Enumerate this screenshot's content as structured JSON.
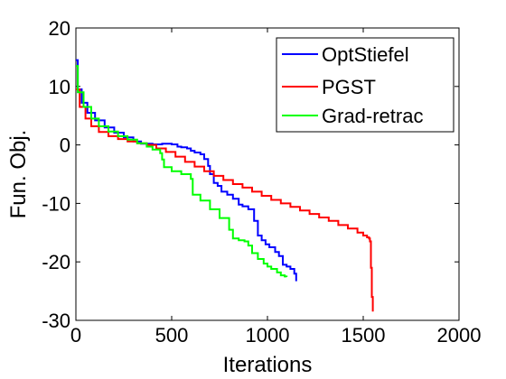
{
  "chart_data": {
    "type": "line",
    "title": "",
    "xlabel": "Iterations",
    "ylabel": "Fun. Obj.",
    "xlim": [
      0,
      2000
    ],
    "ylim": [
      -30,
      20
    ],
    "xticks": [
      "0",
      "500",
      "1000",
      "1500",
      "2000"
    ],
    "yticks": [
      "20",
      "10",
      "0",
      "-10",
      "-20",
      "-30"
    ],
    "legend_position": "top-right",
    "grid": false,
    "series": [
      {
        "name": "OptStiefel",
        "color": "#0000ff",
        "x": [
          0,
          10,
          30,
          60,
          100,
          150,
          200,
          250,
          300,
          340,
          360,
          400,
          450,
          500,
          530,
          550,
          580,
          600,
          620,
          650,
          670,
          690,
          700,
          720,
          740,
          760,
          790,
          820,
          850,
          870,
          900,
          930,
          950,
          970,
          990,
          1010,
          1040,
          1060,
          1080,
          1100,
          1120,
          1140,
          1150
        ],
        "y": [
          14.5,
          9.5,
          7.2,
          5.5,
          4.2,
          3.0,
          2.1,
          1.3,
          0.6,
          0.2,
          0.2,
          0.1,
          0.2,
          0.1,
          -0.3,
          -0.4,
          -0.6,
          -1.0,
          -1.3,
          -1.6,
          -2.4,
          -3.6,
          -5.0,
          -6.5,
          -7.0,
          -8.0,
          -8.5,
          -9.2,
          -10.2,
          -10.5,
          -11.0,
          -13.0,
          -15.5,
          -16.3,
          -17.0,
          -17.5,
          -18.3,
          -19.0,
          -20.5,
          -20.8,
          -21.2,
          -22.0,
          -23.3
        ]
      },
      {
        "name": "PGST",
        "color": "#ff0000",
        "x": [
          0,
          20,
          50,
          80,
          120,
          170,
          220,
          270,
          320,
          370,
          420,
          470,
          520,
          570,
          620,
          670,
          720,
          770,
          820,
          870,
          920,
          970,
          1020,
          1070,
          1120,
          1170,
          1220,
          1270,
          1320,
          1370,
          1420,
          1470,
          1500,
          1520,
          1530,
          1535,
          1540,
          1545,
          1550
        ],
        "y": [
          9.5,
          6.5,
          4.5,
          3.2,
          2.2,
          1.5,
          1.0,
          0.6,
          0.3,
          0.0,
          -0.6,
          -1.2,
          -2.0,
          -2.9,
          -3.7,
          -4.5,
          -5.3,
          -6.0,
          -6.7,
          -7.3,
          -8.0,
          -8.7,
          -9.4,
          -10.0,
          -10.6,
          -11.2,
          -11.8,
          -12.4,
          -13.0,
          -13.7,
          -14.3,
          -15.0,
          -15.5,
          -15.8,
          -16.0,
          -16.5,
          -21.0,
          -26.0,
          -28.5
        ]
      },
      {
        "name": "Grad-retrac",
        "color": "#00ff00",
        "x": [
          0,
          10,
          40,
          80,
          120,
          170,
          220,
          270,
          320,
          370,
          400,
          440,
          450,
          460,
          500,
          550,
          600,
          610,
          650,
          700,
          750,
          800,
          820,
          850,
          880,
          900,
          920,
          950,
          980,
          1000,
          1020,
          1050,
          1070,
          1090,
          1100
        ],
        "y": [
          13.5,
          9.0,
          6.5,
          4.5,
          3.2,
          2.3,
          1.5,
          0.9,
          0.3,
          -0.3,
          -0.8,
          -1.4,
          -2.5,
          -3.8,
          -4.5,
          -5.0,
          -5.8,
          -8.5,
          -9.5,
          -11.0,
          -12.5,
          -14.5,
          -16.0,
          -16.3,
          -16.5,
          -17.2,
          -18.5,
          -19.5,
          -20.3,
          -20.8,
          -21.2,
          -21.8,
          -22.3,
          -22.5,
          -22.6
        ]
      }
    ]
  }
}
